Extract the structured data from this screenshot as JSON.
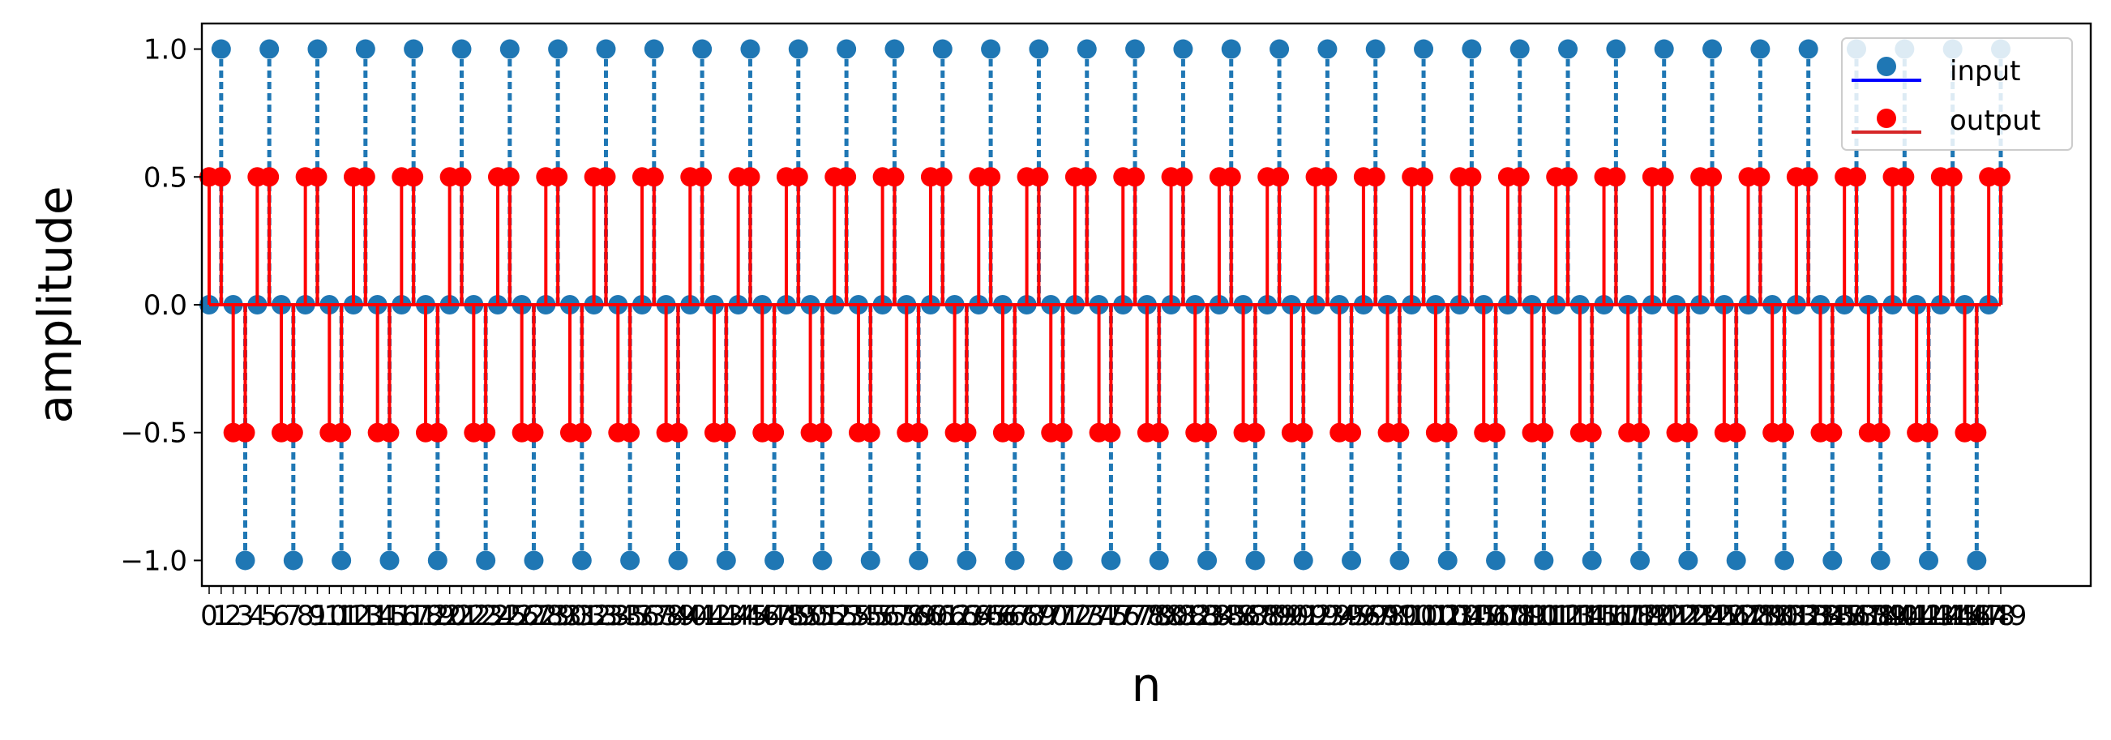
{
  "chart_data": {
    "type": "stem",
    "xlabel": "n",
    "ylabel": "amplitude",
    "x_range": [
      0,
      149
    ],
    "ylim": [
      -1.1,
      1.1
    ],
    "y_ticks": [
      1.0,
      0.5,
      0.0,
      -0.5,
      -1.0
    ],
    "y_tick_labels": [
      "1.0",
      "0.5",
      "0.0",
      "−0.5",
      "−1.0"
    ],
    "x_ticks_every_integer": true,
    "grid": false,
    "legend": {
      "placement": "top-right",
      "entries": [
        "input",
        "output"
      ]
    },
    "series": [
      {
        "name": "input",
        "marker_color": "#1f77b4",
        "stem_color": "#1f77b4",
        "legend_line_color": "#0000ff",
        "pattern": [
          0,
          1,
          0,
          -1
        ],
        "description": "sin(pi*n/2) for n = 0..149"
      },
      {
        "name": "output",
        "marker_color": "#ff0000",
        "stem_color": "#ff0000",
        "legend_line_color": "#d62728",
        "pattern": [
          0.5,
          0.5,
          -0.5,
          -0.5
        ],
        "description": "0.5*(x[n]+x[n-1]) for n = 0..149"
      }
    ]
  }
}
